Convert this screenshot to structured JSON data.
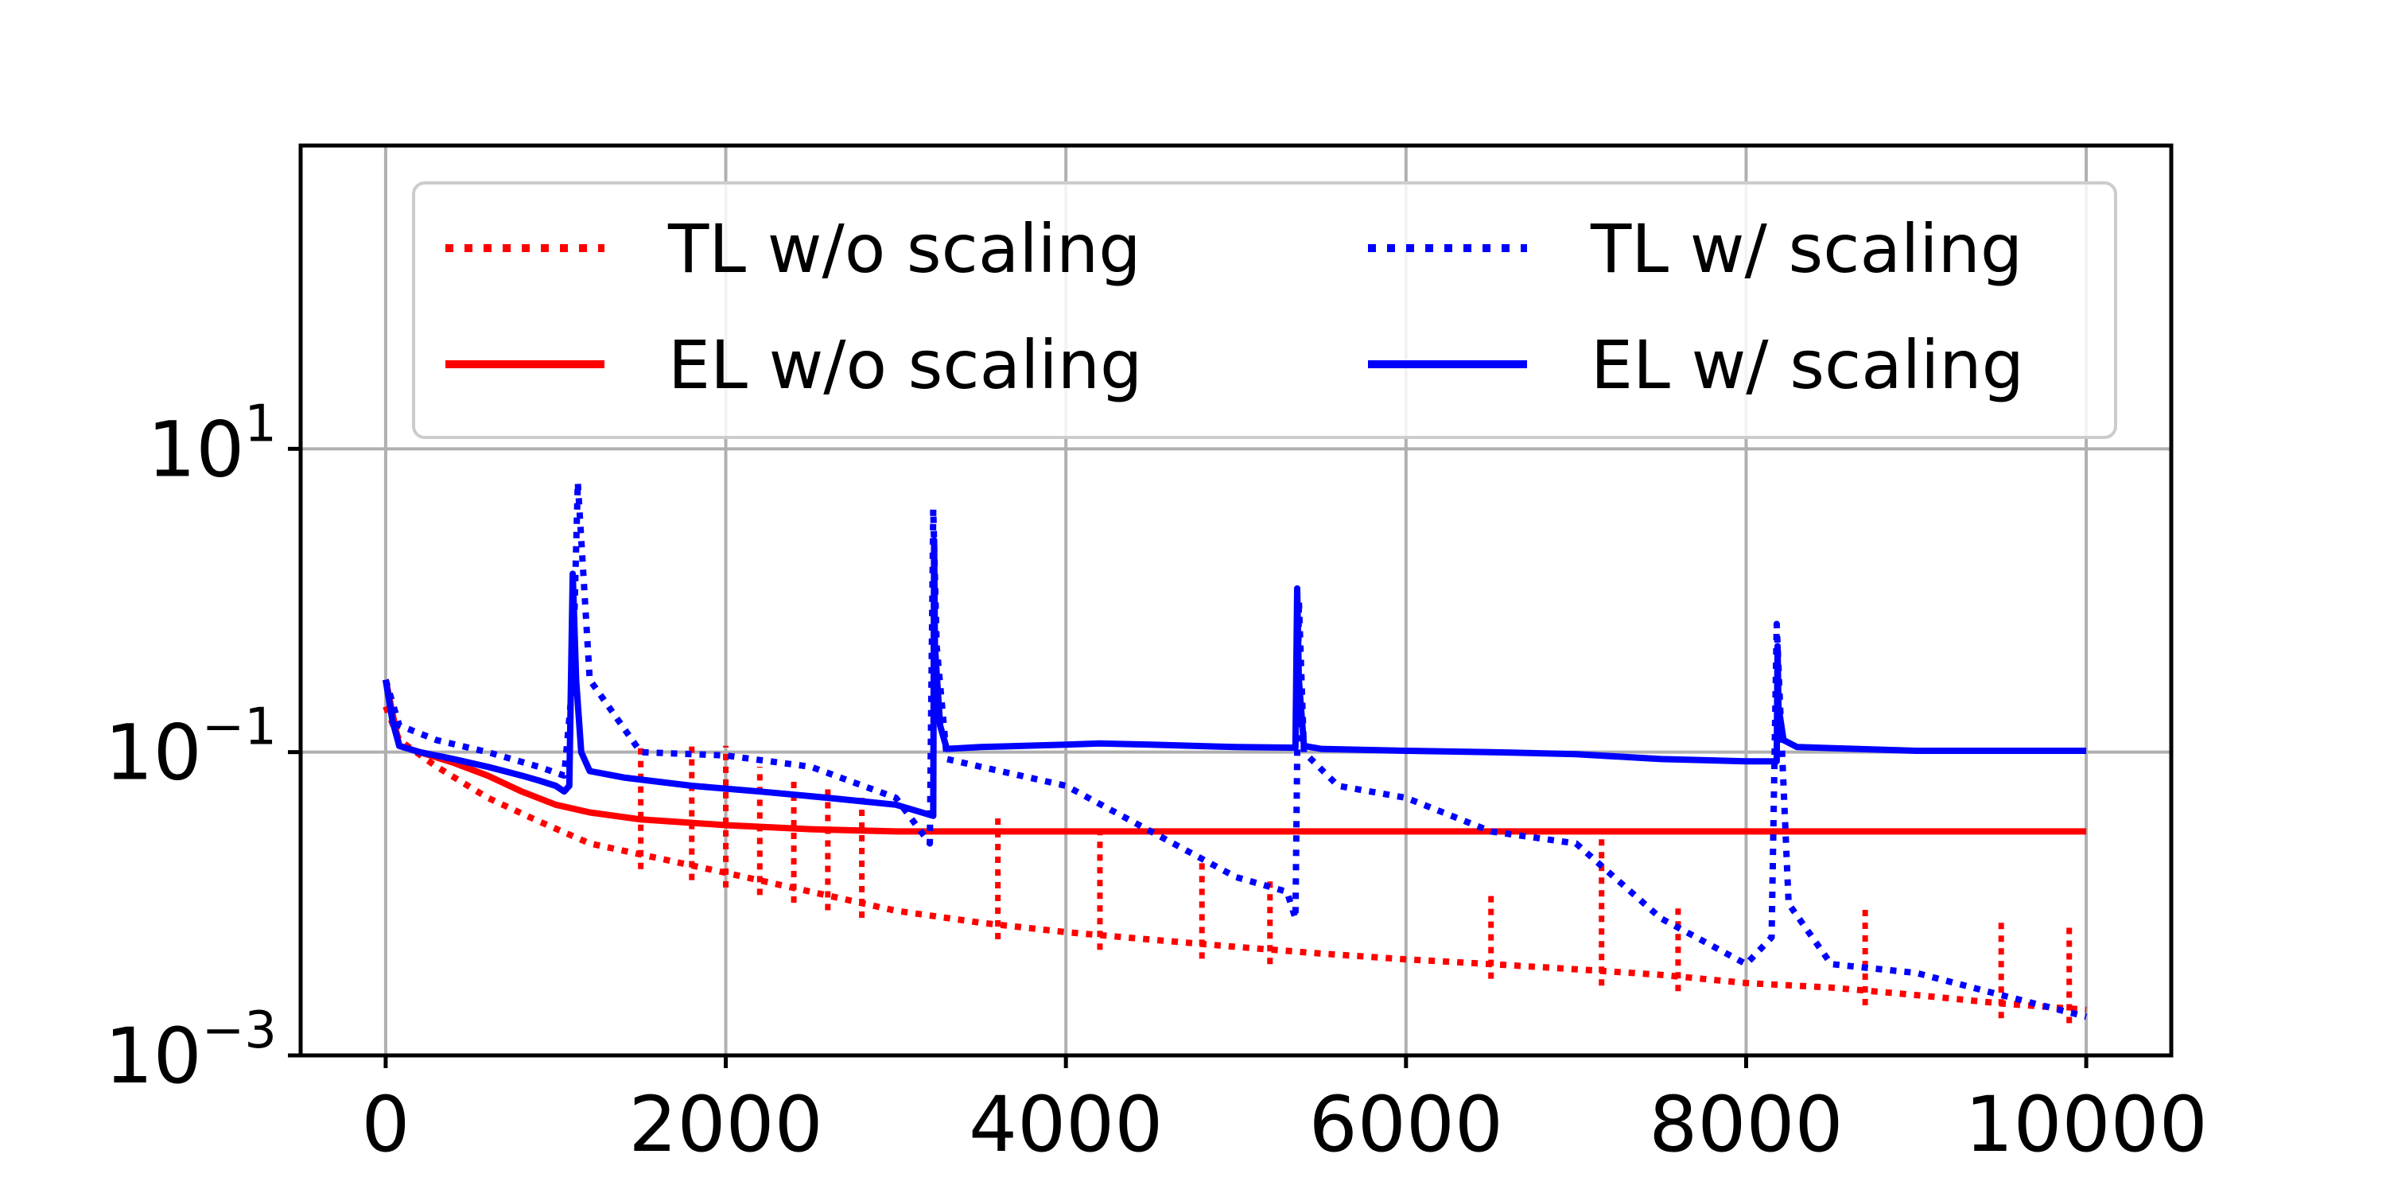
{
  "chart_data": {
    "type": "line",
    "title": "",
    "xlabel": "",
    "ylabel": "",
    "xlim": [
      -500,
      10500
    ],
    "ylim": [
      0.001,
      1000
    ],
    "y_scale": "log",
    "grid": true,
    "legend_position": "top",
    "legend_columns": 2,
    "x_ticks": [
      0,
      2000,
      4000,
      6000,
      8000,
      10000
    ],
    "x_tick_labels": [
      "0",
      "2000",
      "4000",
      "6000",
      "8000",
      "10000"
    ],
    "y_ticks": [
      0.001,
      0.1,
      10
    ],
    "y_tick_labels": [
      {
        "base": "10",
        "exp": "−3"
      },
      {
        "base": "10",
        "exp": "−1"
      },
      {
        "base": "10",
        "exp": "1"
      }
    ],
    "series": [
      {
        "name": "TL w/o scaling",
        "color": "#ff0000",
        "style": "dotted",
        "x": [
          0,
          80,
          300,
          600,
          900,
          1200,
          1600,
          2000,
          2500,
          3000,
          3500,
          4000,
          4500,
          5000,
          5500,
          6000,
          6500,
          7000,
          7500,
          8000,
          8500,
          9000,
          9500,
          10000
        ],
        "y": [
          0.2,
          0.12,
          0.08,
          0.05,
          0.035,
          0.025,
          0.02,
          0.016,
          0.012,
          0.009,
          0.0075,
          0.0065,
          0.0058,
          0.0052,
          0.0047,
          0.0043,
          0.004,
          0.0037,
          0.0034,
          0.003,
          0.0028,
          0.0025,
          0.0022,
          0.002
        ],
        "spikes": [
          {
            "x": 1500,
            "y": 0.11
          },
          {
            "x": 1800,
            "y": 0.12
          },
          {
            "x": 2000,
            "y": 0.11
          },
          {
            "x": 2200,
            "y": 0.08
          },
          {
            "x": 2400,
            "y": 0.07
          },
          {
            "x": 2600,
            "y": 0.06
          },
          {
            "x": 2800,
            "y": 0.05
          },
          {
            "x": 3600,
            "y": 0.04
          },
          {
            "x": 4200,
            "y": 0.03
          },
          {
            "x": 4800,
            "y": 0.02
          },
          {
            "x": 5200,
            "y": 0.015
          },
          {
            "x": 6500,
            "y": 0.012
          },
          {
            "x": 7150,
            "y": 0.03
          },
          {
            "x": 7600,
            "y": 0.01
          },
          {
            "x": 8700,
            "y": 0.01
          },
          {
            "x": 9500,
            "y": 0.008
          },
          {
            "x": 9900,
            "y": 0.007
          }
        ]
      },
      {
        "name": "EL w/o scaling",
        "color": "#ff0000",
        "style": "solid",
        "x": [
          0,
          40,
          80,
          200,
          400,
          600,
          800,
          1000,
          1200,
          1500,
          2000,
          2500,
          3000,
          3200,
          3500,
          4000,
          5000,
          6000,
          7000,
          8000,
          9000,
          10000
        ],
        "y": [
          0.3,
          0.18,
          0.11,
          0.1,
          0.085,
          0.07,
          0.055,
          0.045,
          0.04,
          0.036,
          0.033,
          0.031,
          0.03,
          0.03,
          0.03,
          0.03,
          0.03,
          0.03,
          0.03,
          0.03,
          0.03,
          0.03
        ]
      },
      {
        "name": "TL w/ scaling",
        "color": "#0000ff",
        "style": "dotted",
        "x": [
          0,
          80,
          300,
          600,
          900,
          1050,
          1100,
          1130,
          1200,
          1500,
          2000,
          2500,
          3000,
          3200,
          3220,
          3240,
          3300,
          3500,
          4000,
          4500,
          5000,
          5300,
          5350,
          5370,
          5400,
          5600,
          6000,
          6500,
          7000,
          7500,
          8000,
          8150,
          8180,
          8200,
          8250,
          8500,
          9000,
          9500,
          10000
        ],
        "y": [
          0.3,
          0.15,
          0.12,
          0.1,
          0.08,
          0.07,
          0.3,
          6.0,
          0.3,
          0.1,
          0.095,
          0.08,
          0.05,
          0.025,
          4.0,
          0.5,
          0.09,
          0.08,
          0.06,
          0.03,
          0.015,
          0.012,
          0.008,
          1.0,
          0.1,
          0.06,
          0.05,
          0.03,
          0.025,
          0.008,
          0.004,
          0.006,
          0.7,
          0.2,
          0.01,
          0.004,
          0.0035,
          0.0025,
          0.0018
        ]
      },
      {
        "name": "EL w/ scaling",
        "color": "#0000ff",
        "style": "solid",
        "x": [
          0,
          40,
          80,
          200,
          400,
          600,
          800,
          900,
          1000,
          1050,
          1080,
          1100,
          1120,
          1150,
          1200,
          1400,
          1800,
          2200,
          2600,
          3000,
          3220,
          3225,
          3230,
          3260,
          3300,
          3500,
          4000,
          4200,
          4500,
          5000,
          5350,
          5360,
          5370,
          5400,
          5500,
          6000,
          6500,
          7000,
          7500,
          8000,
          8180,
          8185,
          8190,
          8220,
          8300,
          9000,
          10000
        ],
        "y": [
          0.3,
          0.16,
          0.11,
          0.1,
          0.09,
          0.08,
          0.07,
          0.065,
          0.06,
          0.055,
          0.06,
          1.5,
          0.3,
          0.1,
          0.075,
          0.068,
          0.06,
          0.055,
          0.05,
          0.045,
          0.038,
          2.5,
          0.5,
          0.15,
          0.105,
          0.108,
          0.112,
          0.114,
          0.112,
          0.108,
          0.107,
          1.2,
          0.3,
          0.11,
          0.105,
          0.102,
          0.1,
          0.097,
          0.09,
          0.087,
          0.087,
          0.5,
          0.2,
          0.12,
          0.108,
          0.102,
          0.102
        ]
      }
    ]
  }
}
